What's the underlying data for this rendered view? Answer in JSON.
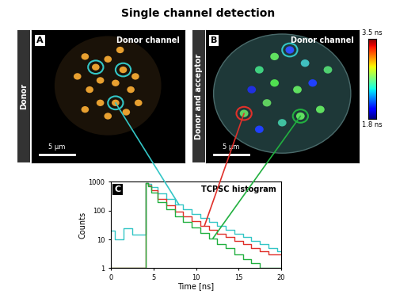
{
  "title": "Single channel detection",
  "panels": [
    {
      "label": "A",
      "row_label": "Donor",
      "channel": "Donor channel",
      "scale_bar": "5 µm"
    },
    {
      "label": "B",
      "row_label": "Donor and acceptor",
      "channel": "Donor channel",
      "scale_bar": "5 µm",
      "colorbar": {
        "range": [
          1.8,
          3.5
        ],
        "ticks": [
          {
            "value": 3.5,
            "label": "3.5 ns"
          },
          {
            "value": 1.8,
            "label": "1.8 ns"
          }
        ]
      }
    }
  ],
  "chart_panel_label": "C",
  "chart_data": {
    "type": "line",
    "title": "TCPSC histogram",
    "x_label": "Time [ns]",
    "y_label": "Counts",
    "log": "y",
    "xlim": [
      0,
      20
    ],
    "xticks": [
      0,
      5,
      10,
      15,
      20
    ],
    "ylim": [
      1,
      1000
    ],
    "yticks": [
      1,
      10,
      100,
      1000
    ],
    "x": [
      0,
      1,
      2,
      3,
      3.9,
      4.2,
      4.5,
      5,
      6,
      7,
      8,
      9,
      10,
      11,
      12,
      13,
      14,
      15,
      16,
      17,
      18,
      19,
      20
    ],
    "series": [
      {
        "color": "#33c6c6",
        "values": [
          20,
          10,
          25,
          15,
          15,
          900,
          850,
          650,
          400,
          250,
          160,
          110,
          75,
          55,
          40,
          30,
          22,
          16,
          12,
          9,
          7,
          5,
          4
        ]
      },
      {
        "color": "#e0302a",
        "values": [
          1,
          1,
          1,
          1,
          1,
          900,
          750,
          500,
          260,
          150,
          95,
          62,
          42,
          30,
          22,
          16,
          12,
          9,
          7,
          5,
          4,
          3,
          3
        ]
      },
      {
        "color": "#22b040",
        "values": [
          1,
          1,
          1,
          1,
          1,
          900,
          700,
          420,
          200,
          110,
          65,
          40,
          26,
          17,
          11,
          7,
          5,
          3,
          2,
          1.5,
          1,
          1,
          1
        ]
      }
    ]
  }
}
